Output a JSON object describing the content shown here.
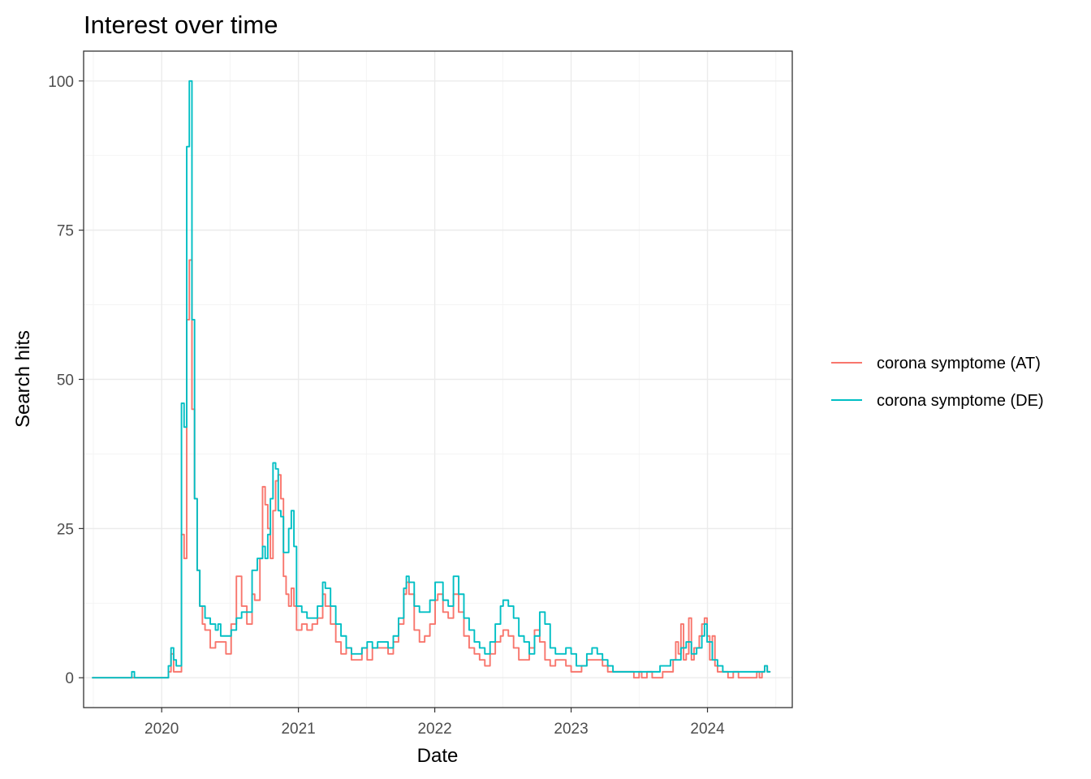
{
  "chart_data": {
    "type": "line",
    "title": "Interest over time",
    "xlabel": "Date",
    "ylabel": "Search hits",
    "x_ticks": [
      "2020",
      "2021",
      "2022",
      "2023",
      "2024"
    ],
    "y_ticks": [
      0,
      25,
      50,
      75,
      100
    ],
    "xlim": [
      "2019-06-06",
      "2024-08-15"
    ],
    "ylim": [
      -5,
      105
    ],
    "grid": true,
    "legend_position": "right",
    "series": [
      {
        "name": "corona symptome (AT)",
        "color": "#F8766D",
        "points": [
          [
            "2019-06-30",
            0
          ],
          [
            "2019-10-01",
            0
          ],
          [
            "2020-01-05",
            0
          ],
          [
            "2020-01-19",
            1
          ],
          [
            "2020-01-26",
            4
          ],
          [
            "2020-02-02",
            1
          ],
          [
            "2020-02-09",
            1
          ],
          [
            "2020-02-16",
            1
          ],
          [
            "2020-02-23",
            24
          ],
          [
            "2020-03-01",
            20
          ],
          [
            "2020-03-08",
            60
          ],
          [
            "2020-03-15",
            70
          ],
          [
            "2020-03-22",
            45
          ],
          [
            "2020-03-29",
            30
          ],
          [
            "2020-04-05",
            18
          ],
          [
            "2020-04-12",
            12
          ],
          [
            "2020-04-19",
            9
          ],
          [
            "2020-04-26",
            8
          ],
          [
            "2020-05-10",
            5
          ],
          [
            "2020-05-24",
            6
          ],
          [
            "2020-06-07",
            6
          ],
          [
            "2020-06-21",
            4
          ],
          [
            "2020-07-05",
            9
          ],
          [
            "2020-07-19",
            17
          ],
          [
            "2020-08-02",
            12
          ],
          [
            "2020-08-16",
            9
          ],
          [
            "2020-08-30",
            14
          ],
          [
            "2020-09-06",
            13
          ],
          [
            "2020-09-20",
            20
          ],
          [
            "2020-09-27",
            32
          ],
          [
            "2020-10-04",
            29
          ],
          [
            "2020-10-11",
            25
          ],
          [
            "2020-10-18",
            20
          ],
          [
            "2020-10-25",
            28
          ],
          [
            "2020-11-01",
            33
          ],
          [
            "2020-11-08",
            34
          ],
          [
            "2020-11-15",
            30
          ],
          [
            "2020-11-22",
            17
          ],
          [
            "2020-11-29",
            14
          ],
          [
            "2020-12-06",
            12
          ],
          [
            "2020-12-13",
            15
          ],
          [
            "2020-12-20",
            12
          ],
          [
            "2020-12-27",
            8
          ],
          [
            "2021-01-10",
            9
          ],
          [
            "2021-01-24",
            8
          ],
          [
            "2021-02-07",
            9
          ],
          [
            "2021-02-21",
            10
          ],
          [
            "2021-03-07",
            14
          ],
          [
            "2021-03-14",
            12
          ],
          [
            "2021-03-28",
            9
          ],
          [
            "2021-04-11",
            6
          ],
          [
            "2021-04-25",
            4
          ],
          [
            "2021-05-09",
            5
          ],
          [
            "2021-05-23",
            3
          ],
          [
            "2021-06-06",
            3
          ],
          [
            "2021-06-20",
            5
          ],
          [
            "2021-07-04",
            3
          ],
          [
            "2021-07-18",
            5
          ],
          [
            "2021-08-01",
            5
          ],
          [
            "2021-08-15",
            5
          ],
          [
            "2021-08-29",
            4
          ],
          [
            "2021-09-12",
            6
          ],
          [
            "2021-09-26",
            9
          ],
          [
            "2021-10-10",
            14
          ],
          [
            "2021-10-17",
            16
          ],
          [
            "2021-10-24",
            14
          ],
          [
            "2021-11-07",
            8
          ],
          [
            "2021-11-21",
            6
          ],
          [
            "2021-12-05",
            7
          ],
          [
            "2021-12-19",
            9
          ],
          [
            "2022-01-02",
            13
          ],
          [
            "2022-01-09",
            14
          ],
          [
            "2022-01-23",
            11
          ],
          [
            "2022-02-06",
            10
          ],
          [
            "2022-02-20",
            14
          ],
          [
            "2022-03-06",
            11
          ],
          [
            "2022-03-20",
            7
          ],
          [
            "2022-04-03",
            5
          ],
          [
            "2022-04-17",
            4
          ],
          [
            "2022-05-01",
            3
          ],
          [
            "2022-05-15",
            2
          ],
          [
            "2022-05-29",
            4
          ],
          [
            "2022-06-12",
            6
          ],
          [
            "2022-06-26",
            7
          ],
          [
            "2022-07-03",
            8
          ],
          [
            "2022-07-17",
            7
          ],
          [
            "2022-07-31",
            5
          ],
          [
            "2022-08-14",
            3
          ],
          [
            "2022-08-28",
            3
          ],
          [
            "2022-09-11",
            5
          ],
          [
            "2022-09-25",
            8
          ],
          [
            "2022-10-09",
            6
          ],
          [
            "2022-10-23",
            3
          ],
          [
            "2022-11-06",
            2
          ],
          [
            "2022-11-20",
            3
          ],
          [
            "2022-12-04",
            3
          ],
          [
            "2022-12-18",
            2
          ],
          [
            "2023-01-01",
            1
          ],
          [
            "2023-01-15",
            1
          ],
          [
            "2023-01-29",
            2
          ],
          [
            "2023-02-12",
            3
          ],
          [
            "2023-02-26",
            3
          ],
          [
            "2023-03-12",
            3
          ],
          [
            "2023-03-26",
            2
          ],
          [
            "2023-04-09",
            1
          ],
          [
            "2023-04-23",
            1
          ],
          [
            "2023-05-21",
            1
          ],
          [
            "2023-06-04",
            1
          ],
          [
            "2023-06-18",
            0
          ],
          [
            "2023-07-02",
            1
          ],
          [
            "2023-07-09",
            0
          ],
          [
            "2023-07-23",
            1
          ],
          [
            "2023-08-06",
            0
          ],
          [
            "2023-08-20",
            0
          ],
          [
            "2023-09-03",
            1
          ],
          [
            "2023-09-17",
            1
          ],
          [
            "2023-10-01",
            3
          ],
          [
            "2023-10-08",
            6
          ],
          [
            "2023-10-15",
            4
          ],
          [
            "2023-10-22",
            9
          ],
          [
            "2023-10-29",
            3
          ],
          [
            "2023-11-05",
            4
          ],
          [
            "2023-11-12",
            10
          ],
          [
            "2023-11-19",
            3
          ],
          [
            "2023-11-26",
            5
          ],
          [
            "2023-12-03",
            5
          ],
          [
            "2023-12-10",
            7
          ],
          [
            "2023-12-17",
            9
          ],
          [
            "2023-12-24",
            10
          ],
          [
            "2023-12-31",
            7
          ],
          [
            "2024-01-07",
            3
          ],
          [
            "2024-01-14",
            7
          ],
          [
            "2024-01-21",
            2
          ],
          [
            "2024-01-28",
            1
          ],
          [
            "2024-02-11",
            1
          ],
          [
            "2024-02-25",
            0
          ],
          [
            "2024-03-10",
            1
          ],
          [
            "2024-03-24",
            0
          ],
          [
            "2024-04-07",
            0
          ],
          [
            "2024-04-21",
            0
          ],
          [
            "2024-05-05",
            0
          ],
          [
            "2024-05-12",
            1
          ],
          [
            "2024-05-19",
            0
          ],
          [
            "2024-05-26",
            1
          ],
          [
            "2024-06-02",
            2
          ],
          [
            "2024-06-09",
            1
          ],
          [
            "2024-06-16",
            1
          ]
        ]
      },
      {
        "name": "corona symptome (DE)",
        "color": "#00BFC4",
        "points": [
          [
            "2019-06-30",
            0
          ],
          [
            "2019-10-06",
            0
          ],
          [
            "2019-10-13",
            1
          ],
          [
            "2019-10-20",
            0
          ],
          [
            "2020-01-05",
            0
          ],
          [
            "2020-01-12",
            0
          ],
          [
            "2020-01-19",
            2
          ],
          [
            "2020-01-26",
            5
          ],
          [
            "2020-02-02",
            3
          ],
          [
            "2020-02-09",
            2
          ],
          [
            "2020-02-16",
            2
          ],
          [
            "2020-02-23",
            46
          ],
          [
            "2020-03-01",
            42
          ],
          [
            "2020-03-08",
            89
          ],
          [
            "2020-03-15",
            100
          ],
          [
            "2020-03-22",
            60
          ],
          [
            "2020-03-29",
            30
          ],
          [
            "2020-04-05",
            18
          ],
          [
            "2020-04-12",
            12
          ],
          [
            "2020-04-26",
            10
          ],
          [
            "2020-05-10",
            9
          ],
          [
            "2020-05-24",
            8
          ],
          [
            "2020-05-31",
            9
          ],
          [
            "2020-06-07",
            7
          ],
          [
            "2020-06-21",
            7
          ],
          [
            "2020-07-05",
            8
          ],
          [
            "2020-07-19",
            10
          ],
          [
            "2020-08-02",
            11
          ],
          [
            "2020-08-16",
            11
          ],
          [
            "2020-08-30",
            18
          ],
          [
            "2020-09-13",
            20
          ],
          [
            "2020-09-27",
            22
          ],
          [
            "2020-10-04",
            20
          ],
          [
            "2020-10-11",
            24
          ],
          [
            "2020-10-18",
            30
          ],
          [
            "2020-10-25",
            36
          ],
          [
            "2020-11-01",
            35
          ],
          [
            "2020-11-08",
            28
          ],
          [
            "2020-11-15",
            27
          ],
          [
            "2020-11-22",
            21
          ],
          [
            "2020-11-29",
            21
          ],
          [
            "2020-12-06",
            25
          ],
          [
            "2020-12-13",
            28
          ],
          [
            "2020-12-20",
            22
          ],
          [
            "2020-12-27",
            12
          ],
          [
            "2021-01-10",
            11
          ],
          [
            "2021-01-24",
            10
          ],
          [
            "2021-02-07",
            10
          ],
          [
            "2021-02-21",
            12
          ],
          [
            "2021-03-07",
            16
          ],
          [
            "2021-03-14",
            15
          ],
          [
            "2021-03-28",
            12
          ],
          [
            "2021-04-11",
            9
          ],
          [
            "2021-04-25",
            7
          ],
          [
            "2021-05-09",
            5
          ],
          [
            "2021-05-23",
            4
          ],
          [
            "2021-06-06",
            4
          ],
          [
            "2021-06-20",
            5
          ],
          [
            "2021-07-04",
            6
          ],
          [
            "2021-07-18",
            5
          ],
          [
            "2021-08-01",
            6
          ],
          [
            "2021-08-15",
            6
          ],
          [
            "2021-08-29",
            5
          ],
          [
            "2021-09-12",
            7
          ],
          [
            "2021-09-26",
            10
          ],
          [
            "2021-10-10",
            15
          ],
          [
            "2021-10-17",
            17
          ],
          [
            "2021-10-24",
            16
          ],
          [
            "2021-11-07",
            12
          ],
          [
            "2021-11-21",
            11
          ],
          [
            "2021-12-05",
            11
          ],
          [
            "2021-12-19",
            13
          ],
          [
            "2022-01-02",
            16
          ],
          [
            "2022-01-09",
            16
          ],
          [
            "2022-01-23",
            13
          ],
          [
            "2022-02-06",
            12
          ],
          [
            "2022-02-20",
            17
          ],
          [
            "2022-03-06",
            14
          ],
          [
            "2022-03-20",
            10
          ],
          [
            "2022-04-03",
            8
          ],
          [
            "2022-04-17",
            6
          ],
          [
            "2022-05-01",
            5
          ],
          [
            "2022-05-15",
            4
          ],
          [
            "2022-05-29",
            6
          ],
          [
            "2022-06-12",
            9
          ],
          [
            "2022-06-26",
            12
          ],
          [
            "2022-07-03",
            13
          ],
          [
            "2022-07-17",
            12
          ],
          [
            "2022-07-31",
            10
          ],
          [
            "2022-08-14",
            7
          ],
          [
            "2022-08-28",
            6
          ],
          [
            "2022-09-11",
            4
          ],
          [
            "2022-09-25",
            7
          ],
          [
            "2022-10-09",
            11
          ],
          [
            "2022-10-23",
            9
          ],
          [
            "2022-11-06",
            5
          ],
          [
            "2022-11-20",
            4
          ],
          [
            "2022-12-04",
            4
          ],
          [
            "2022-12-18",
            5
          ],
          [
            "2023-01-01",
            4
          ],
          [
            "2023-01-15",
            2
          ],
          [
            "2023-01-29",
            2
          ],
          [
            "2023-02-12",
            4
          ],
          [
            "2023-02-26",
            5
          ],
          [
            "2023-03-12",
            4
          ],
          [
            "2023-03-26",
            3
          ],
          [
            "2023-04-09",
            2
          ],
          [
            "2023-04-23",
            1
          ],
          [
            "2023-05-07",
            1
          ],
          [
            "2023-06-04",
            1
          ],
          [
            "2023-07-02",
            1
          ],
          [
            "2023-07-30",
            1
          ],
          [
            "2023-08-27",
            2
          ],
          [
            "2023-09-10",
            2
          ],
          [
            "2023-09-24",
            3
          ],
          [
            "2023-10-08",
            3
          ],
          [
            "2023-10-22",
            5
          ],
          [
            "2023-11-05",
            6
          ],
          [
            "2023-11-19",
            4
          ],
          [
            "2023-12-03",
            5
          ],
          [
            "2023-12-17",
            7
          ],
          [
            "2023-12-24",
            9
          ],
          [
            "2023-12-31",
            6
          ],
          [
            "2024-01-14",
            3
          ],
          [
            "2024-01-28",
            2
          ],
          [
            "2024-02-11",
            1
          ],
          [
            "2024-03-10",
            1
          ],
          [
            "2024-04-07",
            1
          ],
          [
            "2024-05-05",
            1
          ],
          [
            "2024-05-26",
            1
          ],
          [
            "2024-06-02",
            2
          ],
          [
            "2024-06-09",
            1
          ],
          [
            "2024-06-16",
            1
          ]
        ]
      }
    ]
  }
}
